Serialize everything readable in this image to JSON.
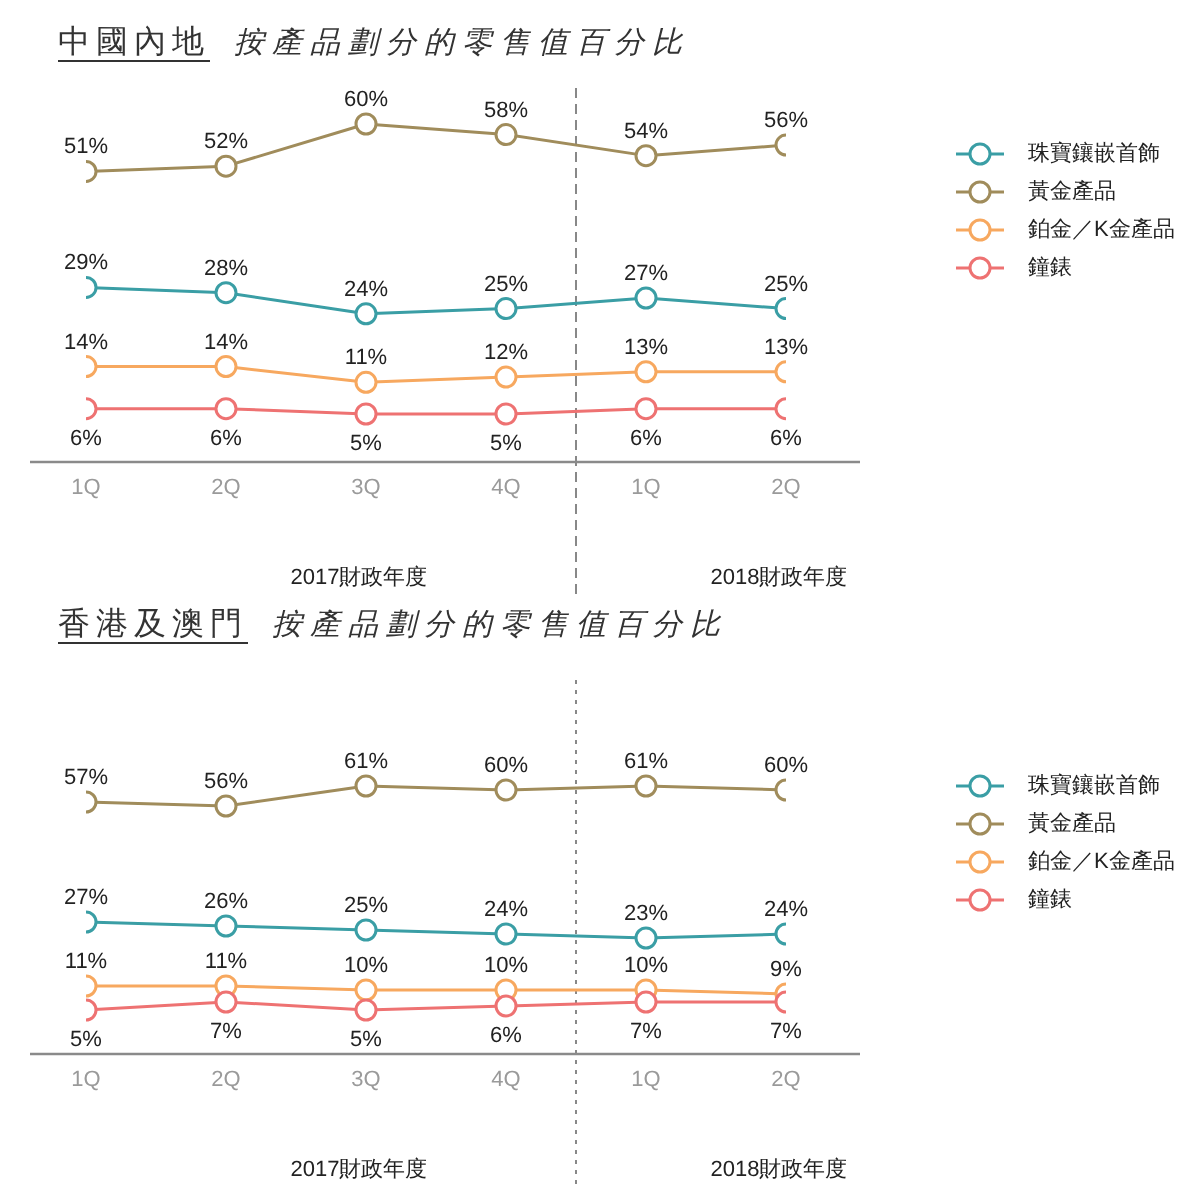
{
  "chart_data": [
    {
      "type": "line",
      "title": "中國內地",
      "subtitle": "按產品劃分的零售值百分比",
      "categories": [
        "1Q",
        "2Q",
        "3Q",
        "4Q",
        "1Q",
        "2Q"
      ],
      "legend": "right",
      "marker": "circle",
      "line_style": "solid",
      "annotations": [
        "2017財政年度",
        "2018財政年度"
      ],
      "series": [
        {
          "name": "珠寶鑲嵌首飾",
          "color": "#3a9ea5",
          "values": [
            29,
            28,
            24,
            25,
            27,
            25
          ],
          "value_labels": [
            "29%",
            "28%",
            "24%",
            "25%",
            "27%",
            "25%"
          ]
        },
        {
          "name": "黃金產品",
          "color": "#a08c5b",
          "values": [
            51,
            52,
            60,
            58,
            54,
            56
          ],
          "value_labels": [
            "51%",
            "52%",
            "60%",
            "58%",
            "54%",
            "56%"
          ]
        },
        {
          "name": "鉑金／K金產品",
          "color": "#f7a85f",
          "values": [
            14,
            14,
            11,
            12,
            13,
            13
          ],
          "value_labels": [
            "14%",
            "14%",
            "11%",
            "12%",
            "13%",
            "13%"
          ]
        },
        {
          "name": "鐘錶",
          "color": "#ee7272",
          "values": [
            6,
            6,
            5,
            5,
            6,
            6
          ],
          "value_labels": [
            "6%",
            "6%",
            "5%",
            "5%",
            "6%",
            "6%"
          ]
        }
      ]
    },
    {
      "type": "line",
      "title": "香港及澳門",
      "subtitle": "按產品劃分的零售值百分比",
      "categories": [
        "1Q",
        "2Q",
        "3Q",
        "4Q",
        "1Q",
        "2Q"
      ],
      "legend": "right",
      "marker": "circle",
      "line_style": "solid",
      "annotations": [
        "2017財政年度",
        "2018財政年度"
      ],
      "series": [
        {
          "name": "珠寶鑲嵌首飾",
          "color": "#3a9ea5",
          "values": [
            27,
            26,
            25,
            24,
            23,
            24
          ],
          "value_labels": [
            "27%",
            "26%",
            "25%",
            "24%",
            "23%",
            "24%"
          ]
        },
        {
          "name": "黃金產品",
          "color": "#a08c5b",
          "values": [
            57,
            56,
            61,
            60,
            61,
            60
          ],
          "value_labels": [
            "57%",
            "56%",
            "61%",
            "60%",
            "61%",
            "60%"
          ]
        },
        {
          "name": "鉑金／K金產品",
          "color": "#f7a85f",
          "values": [
            11,
            11,
            10,
            10,
            10,
            9
          ],
          "value_labels": [
            "11%",
            "11%",
            "10%",
            "10%",
            "10%",
            "9%"
          ]
        },
        {
          "name": "鐘錶",
          "color": "#ee7272",
          "values": [
            5,
            7,
            5,
            6,
            7,
            7
          ],
          "value_labels": [
            "5%",
            "7%",
            "5%",
            "6%",
            "7%",
            "7%"
          ]
        }
      ]
    }
  ]
}
